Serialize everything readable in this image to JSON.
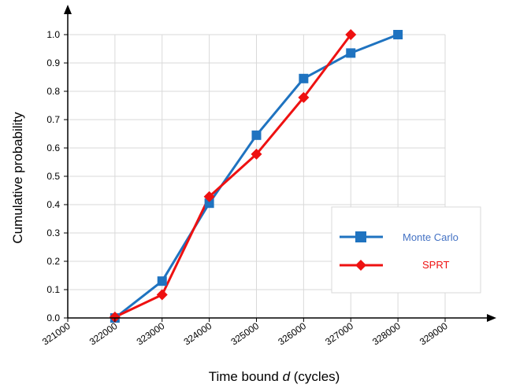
{
  "chart_data": {
    "type": "line",
    "xlabel_prefix": "Time bound ",
    "xlabel_var": "d",
    "xlabel_suffix": " (cycles)",
    "ylabel": "Cumulative probability",
    "xlim": [
      321000,
      329000
    ],
    "ylim": [
      0.0,
      1.0
    ],
    "x_ticks": [
      "321000",
      "322000",
      "323000",
      "324000",
      "325000",
      "326000",
      "327000",
      "328000",
      "329000"
    ],
    "y_ticks": [
      "0.0",
      "0.1",
      "0.2",
      "0.3",
      "0.4",
      "0.5",
      "0.6",
      "0.7",
      "0.8",
      "0.9",
      "1.0"
    ],
    "grid": true,
    "legend_position": "right",
    "series": [
      {
        "name": "Monte Carlo",
        "color": "#1f73c0",
        "text_color": "#4472c4",
        "marker": "square",
        "x": [
          322000,
          323000,
          324000,
          325000,
          326000,
          327000,
          328000
        ],
        "y": [
          0.0,
          0.13,
          0.405,
          0.645,
          0.845,
          0.935,
          1.0
        ]
      },
      {
        "name": "SPRT",
        "color": "#ee1111",
        "text_color": "#ee1111",
        "marker": "diamond",
        "x": [
          322000,
          323000,
          324000,
          325000,
          326000,
          327000
        ],
        "y": [
          0.003,
          0.082,
          0.428,
          0.578,
          0.778,
          1.0
        ]
      }
    ]
  }
}
